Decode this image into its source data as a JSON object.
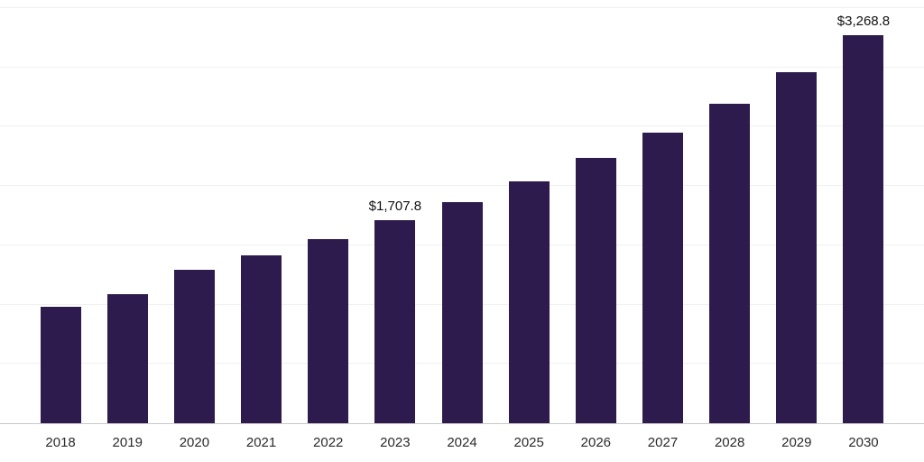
{
  "chart_data": {
    "type": "bar",
    "title": "",
    "xlabel": "",
    "ylabel": "",
    "categories": [
      "2018",
      "2019",
      "2020",
      "2021",
      "2022",
      "2023",
      "2024",
      "2025",
      "2026",
      "2027",
      "2028",
      "2029",
      "2030"
    ],
    "values": [
      980,
      1085,
      1295,
      1415,
      1550,
      1707.8,
      1865,
      2035,
      2235,
      2450,
      2695,
      2960,
      3268.8
    ],
    "data_labels": {
      "2023": "$1,707.8",
      "2030": "$3,268.8"
    },
    "ylim": [
      0,
      3575
    ],
    "grid_values": [
      500,
      1000,
      1500,
      2000,
      2500,
      3000,
      3500
    ],
    "grid": "horizontal",
    "legend": "none",
    "colors": {
      "bar": "#2d1b4e",
      "gridline": "#f0f0f0",
      "baseline": "#c9c9c9",
      "tick_label": "#2b2b2b",
      "data_label": "#111111"
    }
  }
}
